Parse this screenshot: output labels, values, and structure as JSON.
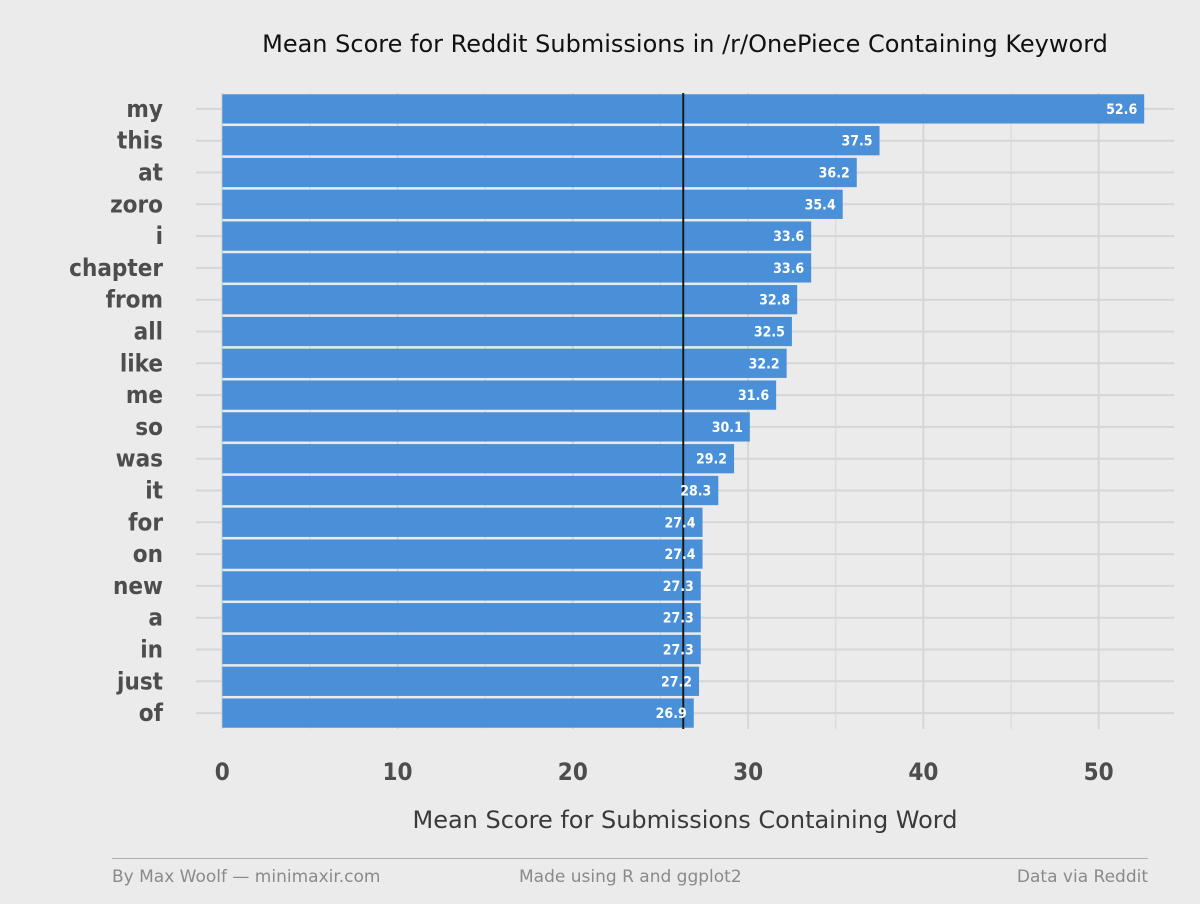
{
  "chart_data": {
    "type": "bar",
    "orientation": "horizontal",
    "title": "Mean Score for Reddit Submissions in /r/OnePiece Containing Keyword",
    "xlabel": "Mean Score for Submissions Containing Word",
    "ylabel": "",
    "categories": [
      "my",
      "this",
      "at",
      "zoro",
      "i",
      "chapter",
      "from",
      "all",
      "like",
      "me",
      "so",
      "was",
      "it",
      "for",
      "on",
      "new",
      "a",
      "in",
      "just",
      "of"
    ],
    "values": [
      52.6,
      37.5,
      36.2,
      35.4,
      33.6,
      33.6,
      32.8,
      32.5,
      32.2,
      31.6,
      30.1,
      29.2,
      28.3,
      27.4,
      27.4,
      27.3,
      27.3,
      27.3,
      27.2,
      26.9
    ],
    "value_labels": [
      "52.6",
      "37.5",
      "36.2",
      "35.4",
      "33.6",
      "33.6",
      "32.8",
      "32.5",
      "32.2",
      "31.6",
      "30.1",
      "29.2",
      "28.3",
      "27.4",
      "27.4",
      "27.3",
      "27.3",
      "27.3",
      "27.2",
      "26.9"
    ],
    "x_ticks": [
      0,
      10,
      20,
      30,
      40,
      50
    ],
    "x_tick_labels": [
      "0",
      "10",
      "20",
      "30",
      "40",
      "50"
    ],
    "xlim": [
      -1.5,
      54.3
    ],
    "reference_line": 26.3,
    "grid": true,
    "bar_color": "#4A90D9",
    "background_color": "#EBEBEB",
    "grid_color": "#D6D6D6",
    "reference_line_color": "#1A1A1A"
  },
  "footer": {
    "left": "By Max Woolf — minimaxir.com",
    "center": "Made using R and ggplot2",
    "right": "Data via Reddit"
  }
}
